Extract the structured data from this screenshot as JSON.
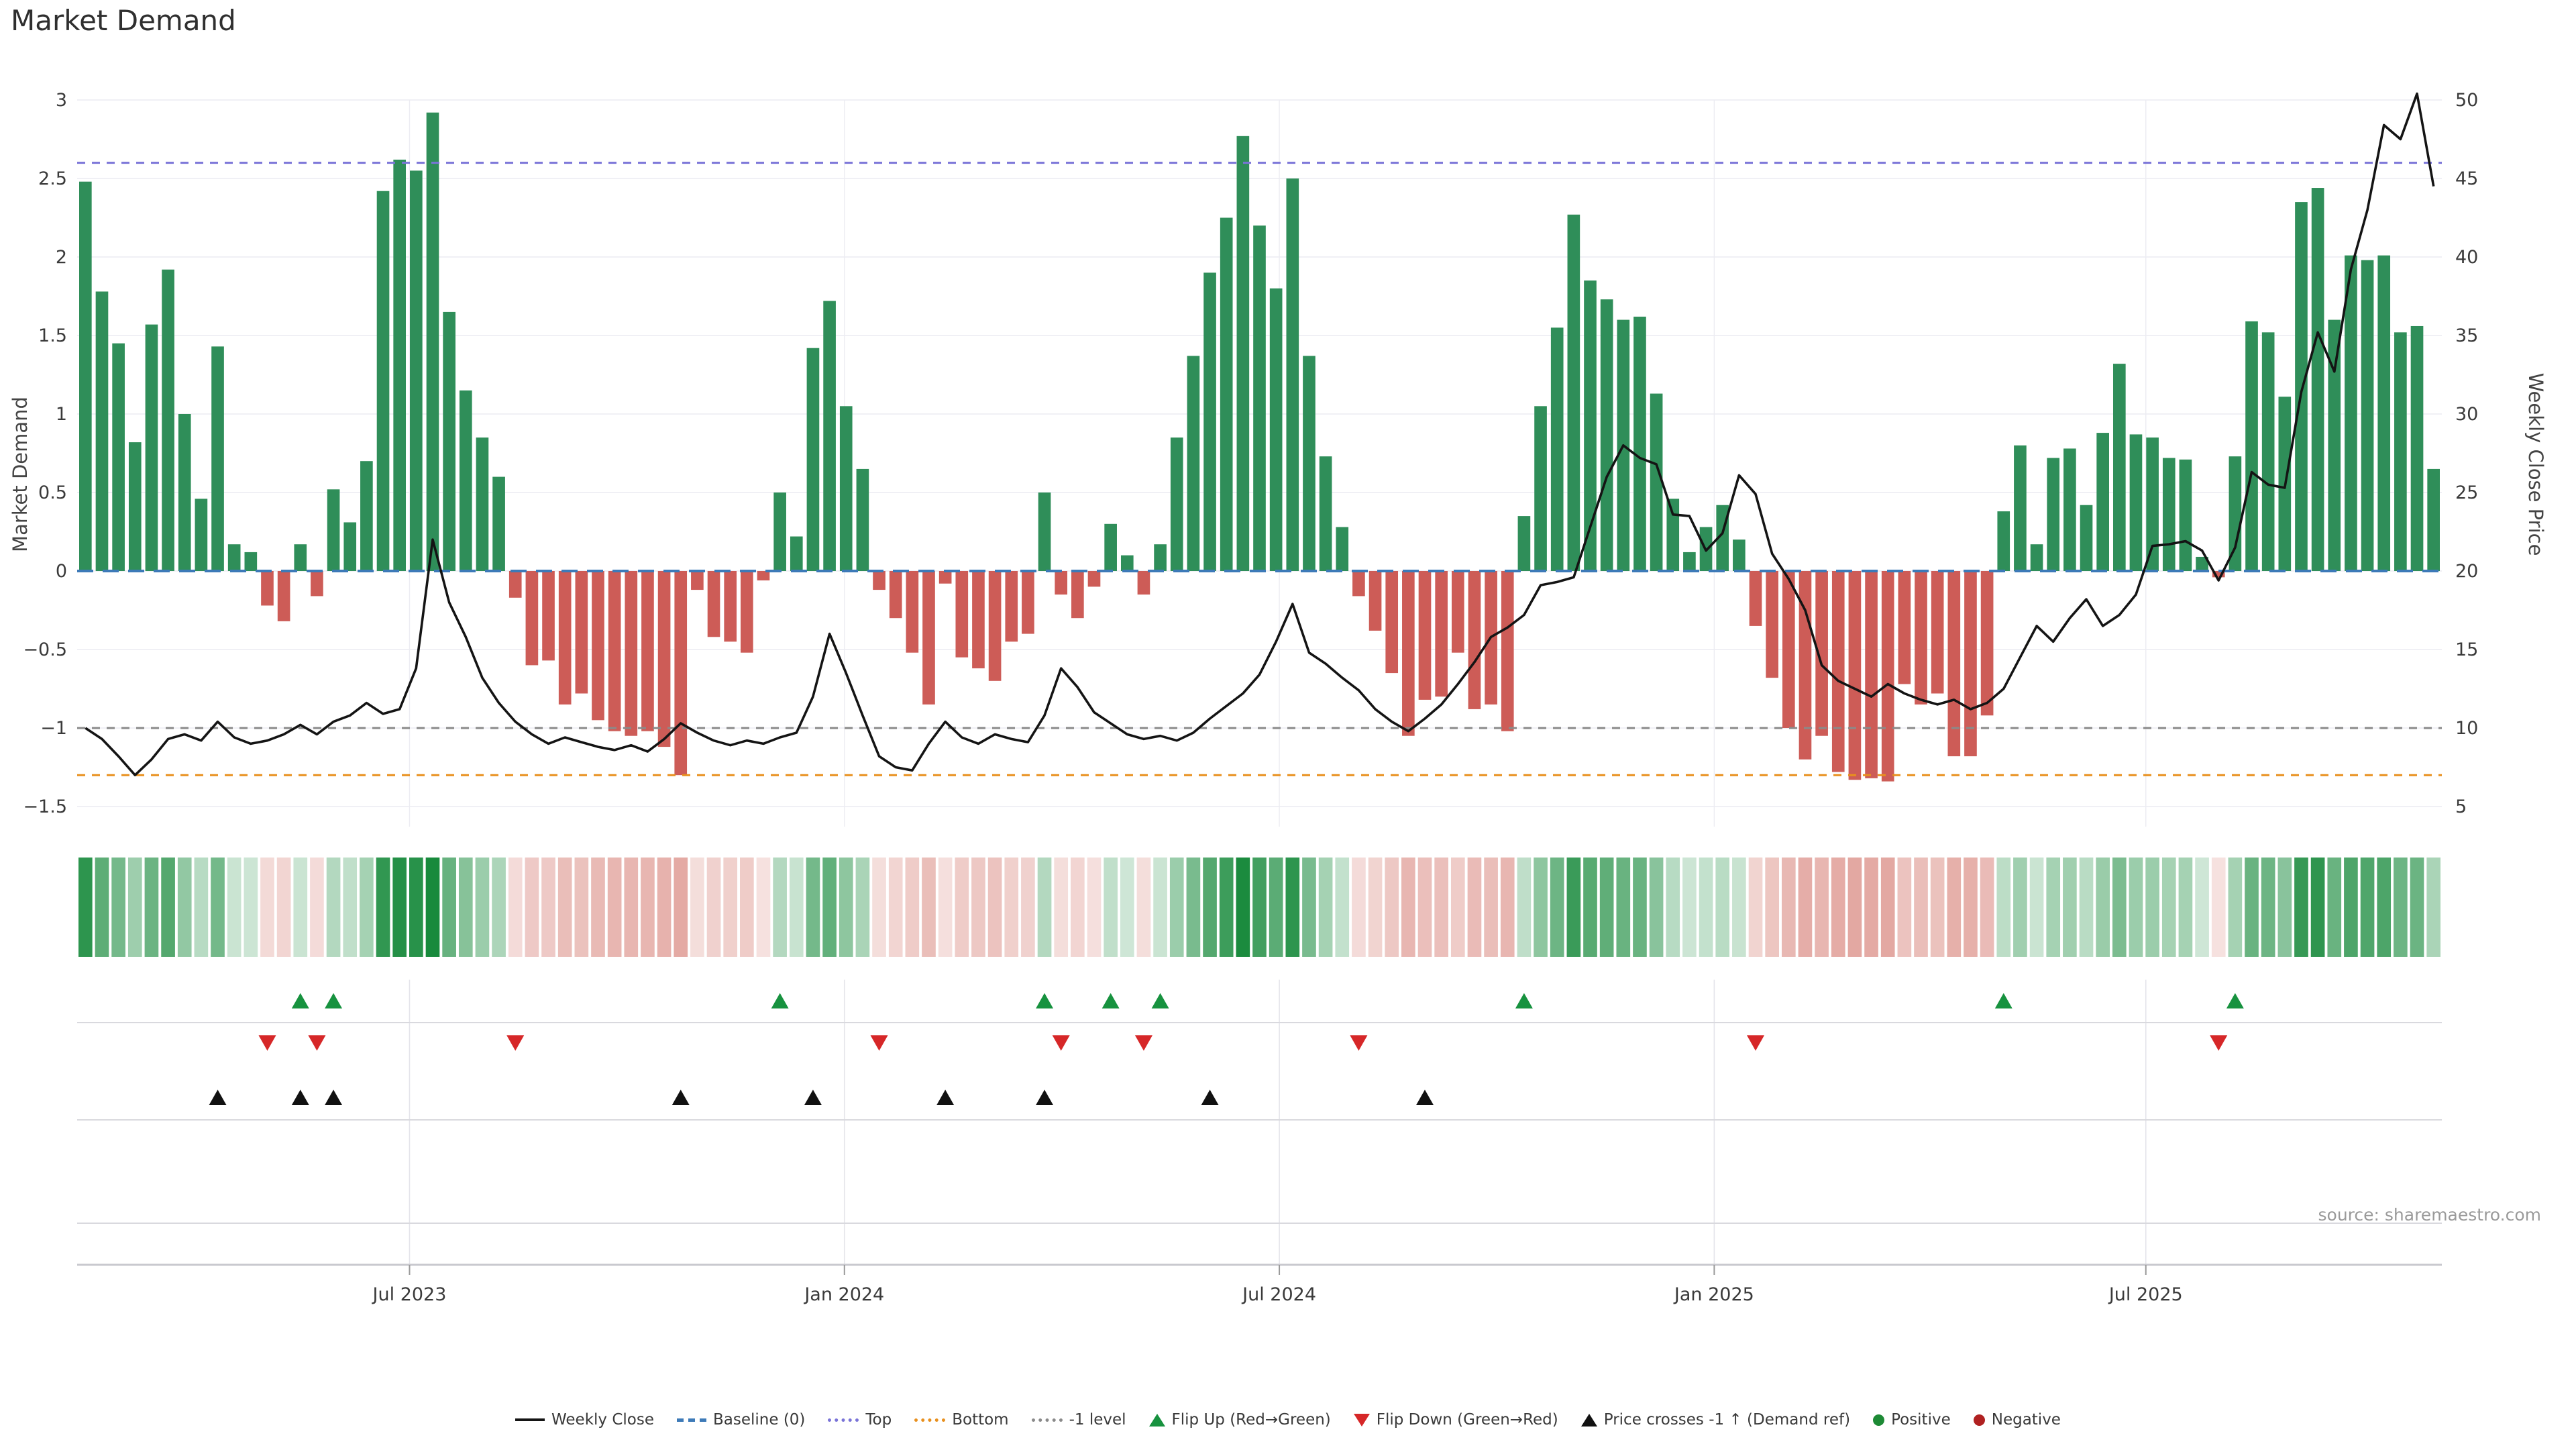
{
  "title": "Market Demand",
  "source_note": "source: sharemaestro.com",
  "colors": {
    "bar_positive": "#2f8e59",
    "bar_negative": "#cd5c57",
    "price_line": "#141414",
    "baseline": "#3d7ab8",
    "top_line": "#7a74d8",
    "bottom_line": "#e8901e",
    "minus_one_line": "#8a8a8a",
    "flip_up": "#17923f",
    "flip_down": "#d62728",
    "price_cross": "#111111",
    "positive_dot": "#1d8a35",
    "negative_dot": "#b02121",
    "grid": "#ececf2",
    "grid_vertical": "#e4e4ea",
    "separator": "#d9d9de",
    "axis_line": "#c9c9cf",
    "tick_text": "#3a3a3a",
    "heatmap_positive": "#188038",
    "heatmap_negative": "#c0392b"
  },
  "chart_data": {
    "type": "bar+line",
    "title": "Market Demand",
    "n_weeks": 143,
    "x_axis": {
      "tick_labels": [
        "Jul 2023",
        "Jan 2024",
        "Jul 2024",
        "Jan 2025",
        "Jul 2025"
      ],
      "tick_week_positions": [
        20.1,
        46.4,
        72.7,
        99.0,
        125.1
      ]
    },
    "left_axis": {
      "label": "Market Demand",
      "range": [
        -1.5,
        3
      ],
      "ticks": [
        3,
        2.5,
        2,
        1.5,
        1,
        0.5,
        0,
        -0.5,
        -1,
        -1.5
      ]
    },
    "right_axis": {
      "label": "Weekly Close Price",
      "range": [
        5,
        50
      ],
      "ticks": [
        50,
        45,
        40,
        35,
        30,
        25,
        20,
        15,
        10,
        5
      ]
    },
    "ref_lines": [
      {
        "name": "Baseline (0)",
        "axis": "left",
        "value": 0,
        "style": "dashed",
        "color": "#3d7ab8"
      },
      {
        "name": "Top",
        "axis": "left",
        "value": 2.6,
        "style": "dotted",
        "color": "#7a74d8"
      },
      {
        "name": "Bottom",
        "axis": "left",
        "value": -1.3,
        "style": "dotted",
        "color": "#e8901e"
      },
      {
        "name": "-1 level",
        "axis": "left",
        "value": -1,
        "style": "dotted",
        "color": "#8a8a8a"
      }
    ],
    "series": [
      {
        "name": "Market Demand",
        "type": "bar",
        "axis": "left",
        "values": [
          2.48,
          1.78,
          1.45,
          0.82,
          1.57,
          1.92,
          1.0,
          0.46,
          1.43,
          0.17,
          0.12,
          -0.22,
          -0.32,
          0.17,
          -0.16,
          0.52,
          0.31,
          0.7,
          2.42,
          2.62,
          2.55,
          2.92,
          1.65,
          1.15,
          0.85,
          0.6,
          -0.17,
          -0.6,
          -0.57,
          -0.85,
          -0.78,
          -0.95,
          -1.02,
          -1.05,
          -1.02,
          -1.12,
          -1.3,
          -0.12,
          -0.42,
          -0.45,
          -0.52,
          -0.06,
          0.5,
          0.22,
          1.42,
          1.72,
          1.05,
          0.65,
          -0.12,
          -0.3,
          -0.52,
          -0.85,
          -0.08,
          -0.55,
          -0.62,
          -0.7,
          -0.45,
          -0.4,
          0.5,
          -0.15,
          -0.3,
          -0.1,
          0.3,
          0.1,
          -0.15,
          0.17,
          0.85,
          1.37,
          1.9,
          2.25,
          2.77,
          2.2,
          1.8,
          2.5,
          1.37,
          0.73,
          0.28,
          -0.16,
          -0.38,
          -0.65,
          -1.05,
          -0.82,
          -0.8,
          -0.52,
          -0.88,
          -0.85,
          -1.02,
          0.35,
          1.05,
          1.55,
          2.27,
          1.85,
          1.73,
          1.6,
          1.62,
          1.13,
          0.46,
          0.12,
          0.28,
          0.42,
          0.2,
          -0.35,
          -0.68,
          -1.0,
          -1.2,
          -1.05,
          -1.28,
          -1.33,
          -1.32,
          -1.34,
          -0.72,
          -0.85,
          -0.78,
          -1.18,
          -1.18,
          -0.92,
          0.38,
          0.8,
          0.17,
          0.72,
          0.78,
          0.42,
          0.88,
          1.32,
          0.87,
          0.85,
          0.72,
          0.71,
          0.09,
          -0.04,
          0.73,
          1.59,
          1.52,
          1.11,
          2.35,
          2.44,
          1.6,
          2.01,
          1.98,
          2.01,
          1.52,
          1.56,
          0.65
        ]
      },
      {
        "name": "Weekly Close",
        "type": "line",
        "axis": "right",
        "values": [
          10.0,
          9.3,
          8.2,
          7.0,
          8.0,
          9.3,
          9.6,
          9.2,
          10.4,
          9.4,
          9.0,
          9.2,
          9.6,
          10.2,
          9.6,
          10.4,
          10.8,
          11.6,
          10.9,
          11.2,
          13.8,
          22.0,
          18.0,
          15.8,
          13.2,
          11.6,
          10.4,
          9.6,
          9.0,
          9.4,
          9.1,
          8.8,
          8.6,
          8.9,
          8.5,
          9.3,
          10.3,
          9.7,
          9.2,
          8.9,
          9.2,
          9.0,
          9.4,
          9.7,
          12.0,
          16.0,
          13.5,
          10.8,
          8.2,
          7.5,
          7.3,
          9.0,
          10.4,
          9.4,
          9.0,
          9.6,
          9.3,
          9.1,
          10.8,
          13.8,
          12.6,
          11.0,
          10.3,
          9.6,
          9.3,
          9.5,
          9.2,
          9.7,
          10.6,
          11.4,
          12.2,
          13.4,
          15.5,
          17.9,
          14.8,
          14.1,
          13.2,
          12.4,
          11.2,
          10.4,
          9.8,
          10.6,
          11.5,
          12.8,
          14.2,
          15.8,
          16.4,
          17.2,
          19.1,
          19.3,
          19.6,
          22.8,
          26.0,
          28.0,
          27.2,
          26.8,
          23.6,
          23.5,
          21.3,
          22.4,
          26.1,
          24.9,
          21.1,
          19.5,
          17.5,
          14.0,
          13.0,
          12.5,
          12.0,
          12.8,
          12.2,
          11.8,
          11.5,
          11.8,
          11.2,
          11.6,
          12.5,
          14.5,
          16.5,
          15.5,
          17.0,
          18.2,
          16.5,
          17.2,
          18.5,
          21.6,
          21.7,
          21.9,
          21.3,
          19.4,
          21.5,
          26.3,
          25.5,
          25.3,
          31.4,
          35.2,
          32.7,
          39.2,
          43.0,
          48.4,
          47.5,
          50.4,
          44.5
        ]
      }
    ],
    "markers": {
      "flip_up": {
        "label": "Flip Up (Red→Green)",
        "symbol": "triangle-up",
        "color": "#17923f",
        "weeks": [
          13,
          15,
          42,
          58,
          62,
          65,
          87,
          116,
          130
        ]
      },
      "flip_down": {
        "label": "Flip Down (Green→Red)",
        "symbol": "triangle-down",
        "color": "#d62728",
        "weeks": [
          11,
          14,
          26,
          48,
          59,
          64,
          77,
          101,
          129
        ]
      },
      "price_cross": {
        "label": "Price crosses -1 ↑ (Demand ref)",
        "symbol": "triangle-up",
        "color": "#111111",
        "weeks": [
          8,
          13,
          15,
          36,
          44,
          52,
          58,
          68,
          81
        ]
      }
    },
    "heatmap": {
      "source_series": "Market Demand",
      "positive_color": "#188038",
      "negative_color": "#c0392b"
    }
  },
  "legend": [
    {
      "label": "Weekly Close",
      "swatch": "line"
    },
    {
      "label": "Baseline (0)",
      "swatch": "dash",
      "color": "#3d7ab8"
    },
    {
      "label": "Top",
      "swatch": "dot",
      "color": "#7a74d8"
    },
    {
      "label": "Bottom",
      "swatch": "dot",
      "color": "#e8901e"
    },
    {
      "label": "-1 level",
      "swatch": "dot",
      "color": "#8a8a8a"
    },
    {
      "label": "Flip Up (Red→Green)",
      "swatch": "tri-up",
      "color": "#17923f"
    },
    {
      "label": "Flip Down (Green→Red)",
      "swatch": "tri-down",
      "color": "#d62728"
    },
    {
      "label": "Price crosses -1 ↑ (Demand ref)",
      "swatch": "tri-up",
      "color": "#111111"
    },
    {
      "label": "Positive",
      "swatch": "circle",
      "color": "#1d8a35"
    },
    {
      "label": "Negative",
      "swatch": "circle",
      "color": "#b02121"
    }
  ]
}
